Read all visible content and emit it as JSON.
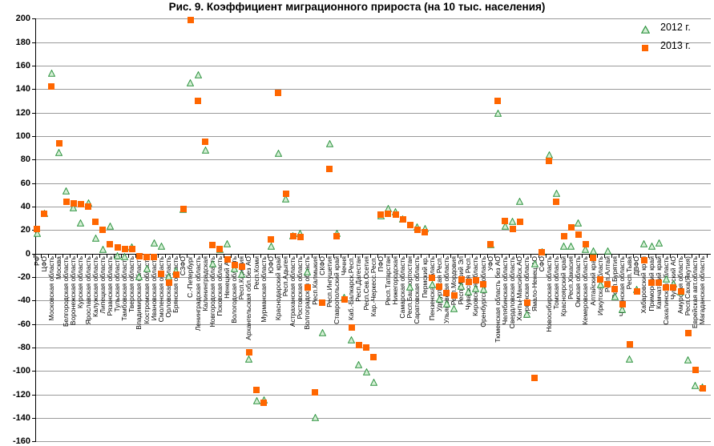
{
  "chart_data": {
    "type": "scatter",
    "title": "Рис. 9. Коэффициент миграционного прироста (на 10 тыс. населения)",
    "xlabel": "",
    "ylabel": "",
    "ylim": [
      -160,
      200
    ],
    "ytick_step": 20,
    "grid": true,
    "legend_position": "top-right",
    "marker_colors": {
      "triangle_fill": "#d6efd6",
      "triangle_stroke": "#2e9440",
      "square_fill": "#ff6600"
    },
    "categories": [
      "РФ",
      "ЦФО",
      "Московская область",
      "Москва",
      "Белгородская область",
      "Воронежская область",
      "Курская область",
      "Ярославская область",
      "Калужская область",
      "Липецкая область",
      "Рязанская область",
      "Тульская область",
      "Тамбовская область",
      "Тверская область",
      "Владимирская область",
      "Костромская область",
      "Ивановская область",
      "Смоленская область",
      "Орловская область",
      "Брянская область",
      "СЗФО",
      "С.-Петербург",
      "Ленинградская область",
      "Калининградская",
      "Новгородская область",
      "Псковская область",
      "Ненецкий АО",
      "Вологодская область",
      "Респ.Карелия",
      "Архангельская обл.без АО",
      "Респ.Коми",
      "Мурманская область",
      "ЮФО",
      "Краснодарский край",
      "Респ.Адыгея",
      "Астраханская область",
      "Ростовская область",
      "Волгоградская область",
      "Респ.Калмыкия",
      "СКФО",
      "Респ.Ингушетия",
      "Ставропольский край",
      "Чечня",
      "Каб.-Балкарск.Респ.",
      "Респ.Дагестан",
      "Респ.Сев.Осетия",
      "Кар.-Черкесс.Респ.",
      "ПФО",
      "Респ.Татарстан",
      "Нижегородская",
      "Самарская область",
      "Респ.Башкортостан",
      "Саратовская область",
      "Пермский кр.",
      "Пензенская область",
      "Удмуртская Респ.",
      "Ульяновская область",
      "Респ.Мордовия",
      "Респ.Марий Эл",
      "Чувашская Респ.",
      "Кировская область",
      "Оренбургская область",
      "УФО",
      "Тюменская область без АО",
      "Челябинская область",
      "Свердловская область",
      "Ханты-Мансийск.АО",
      "Курганская область",
      "Ямало-Ненец.АО",
      "СФО",
      "Новосибирская область",
      "Томская область",
      "Красноярский край",
      "Респ.Хакасия",
      "Омская область",
      "Кемеровская область",
      "Алтайский край",
      "Иркутская область",
      "Респ.Алтай",
      "Респ.Бурятия",
      "Читинская область",
      "Респ.Тыва",
      "ДВФО",
      "Хабаровский край",
      "Приморский край",
      "Камчатский край",
      "Сахалинская область",
      "Чукотский АО",
      "Амурская область",
      "Респ.Саха(Якутия)",
      "Еврейская авт.область",
      "Магаданская область"
    ],
    "series": [
      {
        "name": "2012 г.",
        "marker": "triangle",
        "values": [
          20,
          37,
          156,
          89,
          56,
          42,
          29,
          46,
          16,
          6,
          26,
          1,
          0,
          8,
          -17,
          -10,
          12,
          9,
          -17,
          -12,
          40,
          148,
          155,
          91,
          -6,
          6,
          11,
          -10,
          -15,
          -87,
          -123,
          -122,
          9,
          88,
          49,
          18,
          20,
          -13,
          -137,
          -65,
          96,
          20,
          -35,
          -71,
          -92,
          -98,
          -107,
          35,
          41,
          38,
          32,
          -26,
          25,
          24,
          -24,
          -36,
          -40,
          -44,
          -25,
          -30,
          -27,
          -28,
          10,
          122,
          26,
          30,
          47,
          -49,
          -6,
          4,
          87,
          54,
          9,
          9,
          29,
          6,
          5,
          -24,
          5,
          -34,
          -45,
          -87,
          -28,
          11,
          9,
          12,
          -19,
          -23,
          -30,
          -88,
          -110,
          -111
        ]
      },
      {
        "name": "2013 г.",
        "marker": "square",
        "values": [
          21,
          34,
          142,
          94,
          44,
          43,
          42,
          40,
          27,
          20,
          8,
          5,
          4,
          4,
          -2,
          -3,
          -3,
          -17,
          -25,
          -18,
          38,
          199,
          130,
          95,
          7,
          4,
          -5,
          -10,
          -11,
          -84,
          -116,
          -127,
          12,
          137,
          51,
          15,
          14,
          -29,
          -118,
          -42,
          72,
          15,
          -39,
          -63,
          -78,
          -80,
          -88,
          33,
          34,
          33,
          29,
          24,
          20,
          18,
          -21,
          -28,
          -34,
          -36,
          -22,
          -24,
          -23,
          -26,
          8,
          130,
          28,
          21,
          27,
          -42,
          -106,
          1,
          79,
          44,
          15,
          22,
          16,
          8,
          -4,
          -22,
          -26,
          -30,
          -43,
          -77,
          -32,
          -6,
          -25,
          -25,
          -29,
          -29,
          -32,
          -68,
          -99,
          -115
        ]
      }
    ]
  },
  "legend": {
    "item_2012": "2012 г.",
    "item_2013": "2013 г."
  }
}
